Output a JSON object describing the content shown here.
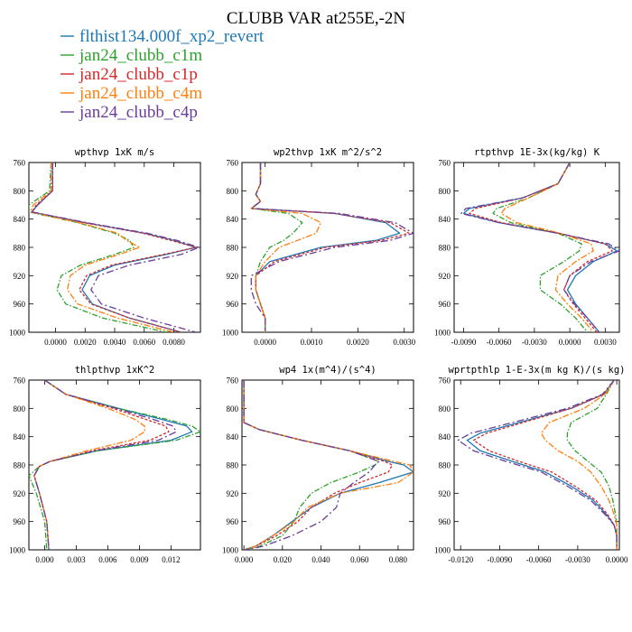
{
  "page": {
    "title": "CLUBB VAR at255E,-2N"
  },
  "legend": [
    {
      "name": "flthist134.000f_xp2_revert",
      "color": "#1f77b4"
    },
    {
      "name": "jan24_clubb_c1m",
      "color": "#2ca02c"
    },
    {
      "name": "jan24_clubb_c1p",
      "color": "#d62728"
    },
    {
      "name": "jan24_clubb_c4m",
      "color": "#ff7f0e"
    },
    {
      "name": "jan24_clubb_c4p",
      "color": "#6a3d9a"
    }
  ],
  "chart_data": [
    {
      "type": "line",
      "title": "wpthvp  1xK m/s",
      "xlim": [
        -0.0018,
        0.0098
      ],
      "ylim": [
        760,
        1000
      ],
      "xticks": [
        0.0,
        0.002,
        0.004,
        0.006,
        0.008
      ],
      "xtick_labels": [
        "0.0000",
        "0.0020",
        "0.0040",
        "0.0060",
        "0.0080"
      ],
      "yticks": [
        760,
        800,
        840,
        880,
        920,
        960,
        1000
      ],
      "y": [
        760,
        800,
        820,
        830,
        845,
        860,
        870,
        880,
        890,
        905,
        920,
        940,
        960,
        980,
        1000
      ],
      "series": [
        {
          "values": [
            -0.0002,
            -0.0002,
            -0.0012,
            -0.0016,
            0.002,
            0.006,
            0.008,
            0.0095,
            0.0075,
            0.004,
            0.0023,
            0.0018,
            0.0025,
            0.005,
            0.0085
          ]
        },
        {
          "values": [
            -0.0003,
            -0.0004,
            -0.0018,
            -0.0018,
            0.0015,
            0.004,
            0.005,
            0.0053,
            0.004,
            0.0017,
            0.0004,
            0.0001,
            0.0007,
            0.0032,
            0.0075
          ]
        },
        {
          "values": [
            -0.0002,
            -0.0002,
            -0.0013,
            -0.0016,
            0.0019,
            0.0059,
            0.0078,
            0.0095,
            0.0073,
            0.0038,
            0.0021,
            0.0016,
            0.0024,
            0.005,
            0.0085
          ]
        },
        {
          "values": [
            -0.0003,
            -0.0003,
            -0.0015,
            -0.0017,
            0.0016,
            0.0042,
            0.0048,
            0.0057,
            0.0043,
            0.002,
            0.001,
            0.0008,
            0.0015,
            0.0042,
            0.008
          ]
        },
        {
          "values": [
            -0.0002,
            -0.0002,
            -0.0012,
            -0.0016,
            0.0021,
            0.0062,
            0.0082,
            0.0097,
            0.0085,
            0.005,
            0.0029,
            0.0024,
            0.0031,
            0.006,
            0.0095
          ]
        }
      ]
    },
    {
      "type": "line",
      "title": "wp2thvp  1xK m^2/s^2",
      "xlim": [
        -0.0005,
        0.0032
      ],
      "ylim": [
        760,
        1000
      ],
      "xticks": [
        0.0,
        0.001,
        0.002,
        0.003
      ],
      "xtick_labels": [
        "0.0000",
        "0.0010",
        "0.0020",
        "0.0030"
      ],
      "yticks": [
        760,
        800,
        840,
        880,
        920,
        960,
        1000
      ],
      "y": [
        760,
        790,
        805,
        815,
        825,
        832,
        845,
        860,
        870,
        880,
        900,
        920,
        940,
        960,
        980,
        1000
      ],
      "series": [
        {
          "values": [
            -0.0001,
            -0.0001,
            -0.0002,
            -0.0001,
            -0.0003,
            0.0015,
            0.0026,
            0.0029,
            0.0024,
            0.0012,
            0.0001,
            -0.0002,
            -0.0002,
            -0.0001,
            0.0,
            0.0
          ]
        },
        {
          "values": [
            -0.0001,
            -0.0001,
            -0.0002,
            -0.0001,
            -0.0003,
            0.0005,
            0.0008,
            0.0006,
            0.0004,
            0.0001,
            -0.0001,
            -0.0002,
            -0.0002,
            -0.0001,
            0.0,
            0.0
          ]
        },
        {
          "values": [
            -0.0001,
            -0.0001,
            -0.0002,
            -0.0001,
            -0.0003,
            0.0015,
            0.0027,
            0.0031,
            0.0025,
            0.0013,
            0.0002,
            -0.0002,
            -0.0002,
            -0.0001,
            0.0,
            0.0
          ]
        },
        {
          "values": [
            -0.0001,
            -0.0001,
            -0.0002,
            -0.0001,
            -0.0003,
            0.0008,
            0.0012,
            0.0011,
            0.0007,
            0.0003,
            0.0,
            -0.0002,
            -0.0002,
            -0.0001,
            0.0,
            0.0
          ]
        },
        {
          "values": [
            -0.0001,
            -0.0001,
            -0.0002,
            -0.0001,
            -0.0003,
            0.0016,
            0.0028,
            0.0032,
            0.0027,
            0.0015,
            0.0003,
            -0.0003,
            -0.0003,
            -0.0002,
            0.0,
            0.0
          ]
        }
      ]
    },
    {
      "type": "line",
      "title": "rtpthvp  1E-3x(kg/kg) K",
      "xlim": [
        -0.0098,
        0.0042
      ],
      "ylim": [
        760,
        1000
      ],
      "xticks": [
        -0.009,
        -0.006,
        -0.003,
        0.0,
        0.003
      ],
      "xtick_labels": [
        "-0.0090",
        "-0.0060",
        "-0.0030",
        "0.0000",
        "0.0030"
      ],
      "yticks": [
        760,
        800,
        840,
        880,
        920,
        960,
        1000
      ],
      "y": [
        760,
        790,
        810,
        825,
        832,
        845,
        860,
        875,
        885,
        900,
        920,
        940,
        960,
        980,
        1000
      ],
      "series": [
        {
          "values": [
            0.0,
            -0.001,
            -0.004,
            -0.0085,
            -0.009,
            -0.006,
            -0.001,
            0.003,
            0.004,
            0.002,
            0.0005,
            -0.0002,
            0.0005,
            0.0015,
            0.0025
          ]
        },
        {
          "values": [
            0.0,
            -0.001,
            -0.0035,
            -0.0062,
            -0.0065,
            -0.005,
            -0.001,
            0.001,
            0.0008,
            -0.0005,
            -0.0025,
            -0.0025,
            -0.0008,
            0.0005,
            0.0015
          ]
        },
        {
          "values": [
            0.0,
            -0.001,
            -0.004,
            -0.008,
            -0.0085,
            -0.0058,
            -0.001,
            0.003,
            0.0036,
            0.0015,
            0.0,
            -0.0005,
            0.0003,
            0.0013,
            0.0023
          ]
        },
        {
          "values": [
            0.0,
            -0.001,
            -0.0035,
            -0.0055,
            -0.0058,
            -0.0045,
            -0.0008,
            0.0018,
            0.002,
            0.0005,
            -0.001,
            -0.0012,
            -0.0002,
            0.001,
            0.002
          ]
        },
        {
          "values": [
            0.0,
            -0.001,
            -0.004,
            -0.0088,
            -0.0092,
            -0.006,
            -0.001,
            0.0033,
            0.0042,
            0.0018,
            0.0,
            -0.0005,
            0.0004,
            0.0015,
            0.0025
          ]
        }
      ]
    },
    {
      "type": "line",
      "title": "thlpthvp  1xK^2",
      "xlim": [
        -0.0015,
        0.0148
      ],
      "ylim": [
        760,
        1000
      ],
      "xticks": [
        0.0,
        0.003,
        0.006,
        0.009,
        0.012
      ],
      "xtick_labels": [
        "0.000",
        "0.003",
        "0.006",
        "0.009",
        "0.012"
      ],
      "yticks": [
        760,
        800,
        840,
        880,
        920,
        960,
        1000
      ],
      "y": [
        760,
        780,
        800,
        815,
        825,
        833,
        845,
        860,
        875,
        882,
        895,
        920,
        960,
        1000
      ],
      "series": [
        {
          "values": [
            0.0,
            0.002,
            0.007,
            0.011,
            0.0135,
            0.014,
            0.012,
            0.005,
            0.0005,
            -0.0005,
            -0.001,
            -0.0005,
            0.0002,
            0.0004
          ]
        },
        {
          "values": [
            0.0,
            0.002,
            0.007,
            0.0115,
            0.014,
            0.0148,
            0.0125,
            0.005,
            0.0005,
            -0.0005,
            -0.0015,
            -0.0008,
            0.0,
            0.0002
          ]
        },
        {
          "values": [
            0.0,
            0.002,
            0.0065,
            0.0095,
            0.0115,
            0.0118,
            0.01,
            0.0045,
            0.0005,
            -0.0005,
            -0.001,
            -0.0005,
            0.0002,
            0.0004
          ]
        },
        {
          "values": [
            0.0,
            0.002,
            0.006,
            0.0085,
            0.0095,
            0.0095,
            0.0082,
            0.004,
            0.0005,
            -0.0005,
            -0.001,
            -0.0005,
            0.0002,
            0.0004
          ]
        },
        {
          "values": [
            0.0,
            0.002,
            0.0068,
            0.0102,
            0.0122,
            0.0125,
            0.0108,
            0.0048,
            0.0005,
            -0.0005,
            -0.001,
            -0.0005,
            0.0002,
            0.0004
          ]
        }
      ]
    },
    {
      "type": "line",
      "title": "wp4  1x(m^4)/(s^4)",
      "xlim": [
        -0.001,
        0.088
      ],
      "ylim": [
        760,
        1000
      ],
      "xticks": [
        0.0,
        0.02,
        0.04,
        0.06,
        0.08
      ],
      "xtick_labels": [
        "0.000",
        "0.020",
        "0.040",
        "0.060",
        "0.080"
      ],
      "yticks": [
        760,
        800,
        840,
        880,
        920,
        960,
        1000
      ],
      "y": [
        760,
        800,
        820,
        830,
        845,
        860,
        875,
        880,
        890,
        905,
        920,
        940,
        960,
        980,
        995,
        1000
      ],
      "series": [
        {
          "values": [
            0.0,
            0.0,
            0.0,
            0.008,
            0.03,
            0.055,
            0.075,
            0.083,
            0.088,
            0.07,
            0.05,
            0.035,
            0.025,
            0.015,
            0.006,
            0.0
          ]
        },
        {
          "values": [
            0.0,
            0.0,
            0.0,
            0.008,
            0.03,
            0.055,
            0.07,
            0.068,
            0.06,
            0.045,
            0.035,
            0.029,
            0.026,
            0.02,
            0.008,
            0.0
          ]
        },
        {
          "values": [
            0.0,
            0.0,
            0.0,
            0.008,
            0.03,
            0.055,
            0.073,
            0.077,
            0.075,
            0.06,
            0.047,
            0.035,
            0.028,
            0.017,
            0.006,
            0.0
          ]
        },
        {
          "values": [
            0.0,
            0.0,
            0.0,
            0.008,
            0.03,
            0.055,
            0.078,
            0.086,
            0.088,
            0.08,
            0.05,
            0.033,
            0.026,
            0.015,
            0.006,
            0.0
          ]
        },
        {
          "values": [
            0.0,
            0.0,
            0.0,
            0.008,
            0.03,
            0.055,
            0.07,
            0.068,
            0.065,
            0.057,
            0.05,
            0.048,
            0.04,
            0.025,
            0.01,
            0.0
          ]
        }
      ]
    },
    {
      "type": "line",
      "title": "wprtpthlp  1-E-3x(m kg K)/(s kg)",
      "xlim": [
        -0.0125,
        0.0002
      ],
      "ylim": [
        760,
        1000
      ],
      "xticks": [
        -0.012,
        -0.009,
        -0.006,
        -0.003,
        0.0
      ],
      "xtick_labels": [
        "-0.0120",
        "-0.0090",
        "-0.0060",
        "-0.0030",
        "0.0000"
      ],
      "yticks": [
        760,
        800,
        840,
        880,
        920,
        960,
        1000
      ],
      "y": [
        760,
        780,
        800,
        820,
        835,
        845,
        860,
        875,
        890,
        910,
        930,
        950,
        965,
        980,
        1000
      ],
      "series": [
        {
          "values": [
            -0.0002,
            -0.001,
            -0.0035,
            -0.0075,
            -0.0105,
            -0.0115,
            -0.0105,
            -0.008,
            -0.0055,
            -0.0035,
            -0.0018,
            -0.0008,
            -0.0002,
            0.0,
            0.0
          ]
        },
        {
          "values": [
            -0.0002,
            -0.0008,
            -0.0015,
            -0.0035,
            -0.0038,
            -0.0038,
            -0.0032,
            -0.0022,
            -0.0012,
            -0.0006,
            -0.0003,
            -0.0001,
            0.0,
            0.0,
            0.0
          ]
        },
        {
          "values": [
            -0.0002,
            -0.001,
            -0.0035,
            -0.0072,
            -0.01,
            -0.011,
            -0.0098,
            -0.0075,
            -0.005,
            -0.0032,
            -0.0016,
            -0.0007,
            -0.0002,
            0.0,
            0.0
          ]
        },
        {
          "values": [
            -0.0002,
            -0.0009,
            -0.0025,
            -0.0052,
            -0.0058,
            -0.0055,
            -0.0045,
            -0.003,
            -0.002,
            -0.0012,
            -0.0006,
            -0.0002,
            0.0,
            0.0,
            0.0
          ]
        },
        {
          "values": [
            -0.0002,
            -0.0011,
            -0.0038,
            -0.008,
            -0.0112,
            -0.0122,
            -0.011,
            -0.0085,
            -0.0058,
            -0.0038,
            -0.002,
            -0.0009,
            -0.0002,
            0.0,
            0.0
          ]
        }
      ]
    }
  ]
}
